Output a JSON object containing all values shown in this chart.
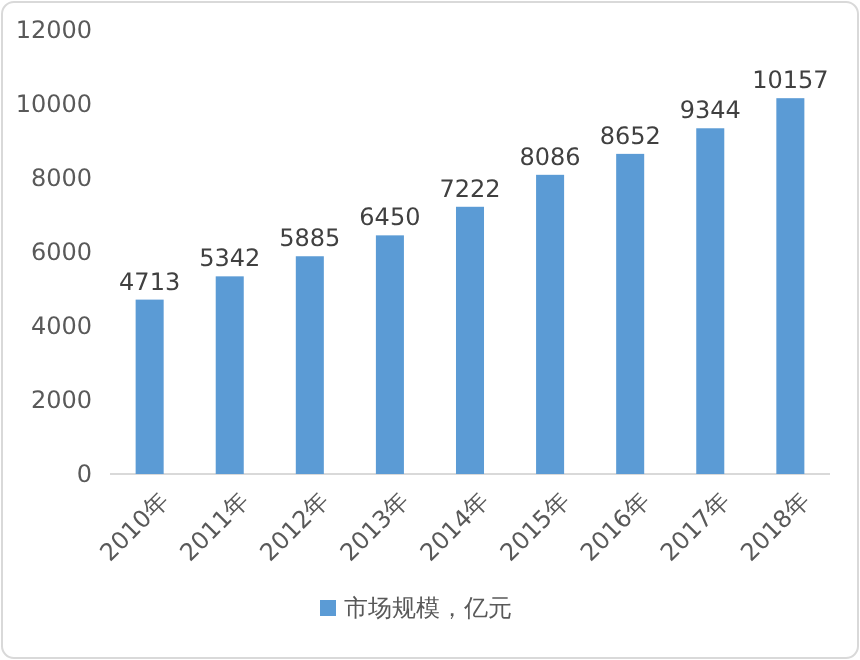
{
  "chart_data": {
    "type": "bar",
    "categories": [
      "2010年",
      "2011年",
      "2012年",
      "2013年",
      "2014年",
      "2015年",
      "2016年",
      "2017年",
      "2018年"
    ],
    "series": [
      {
        "name": "市场规模，亿元",
        "color": "#5b9bd5",
        "values": [
          4713,
          5342,
          5885,
          6450,
          7222,
          8086,
          8652,
          9344,
          10157
        ]
      }
    ],
    "ylim": [
      0,
      12000
    ],
    "yticks": [
      0,
      2000,
      4000,
      6000,
      8000,
      10000,
      12000
    ],
    "grid": false,
    "legend": "bottom",
    "data_labels": true
  }
}
